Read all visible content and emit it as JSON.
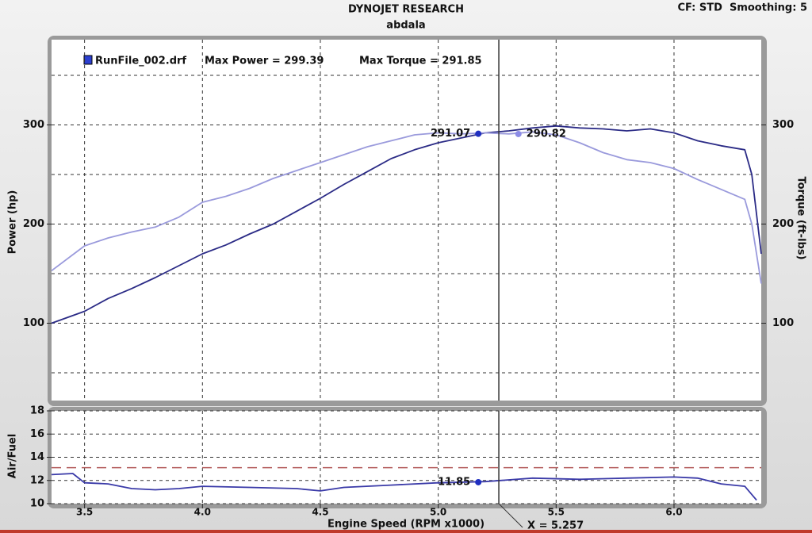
{
  "chart_data": [
    {
      "type": "line",
      "title": "DYNOJET RESEARCH",
      "subtitle": "abdala",
      "header_right": "CF: STD  Smoothing: 5",
      "legend": {
        "file": "RunFile_002.drf",
        "max_power": "Max Power = 299.39",
        "max_torque": "Max Torque = 291.85"
      },
      "ylabel": "Power (hp)",
      "y2label": "Torque (ft-lbs)",
      "xlim": [
        3.36,
        6.37
      ],
      "x_grid": [
        3.5,
        4.0,
        4.5,
        5.0,
        5.5,
        6.0
      ],
      "ylim": [
        22,
        386
      ],
      "yticks": [
        100,
        200,
        300
      ],
      "y_minor_grid": [
        50,
        150,
        250,
        350
      ],
      "y2lim": [
        22,
        386
      ],
      "y2ticks": [
        100,
        200,
        300
      ],
      "grid": true,
      "x": [
        3.36,
        3.5,
        3.6,
        3.7,
        3.8,
        3.9,
        4.0,
        4.1,
        4.2,
        4.3,
        4.4,
        4.5,
        4.6,
        4.7,
        4.8,
        4.9,
        5.0,
        5.1,
        5.2,
        5.3,
        5.4,
        5.5,
        5.6,
        5.7,
        5.8,
        5.9,
        6.0,
        6.1,
        6.2,
        6.3,
        6.33,
        6.37
      ],
      "series": [
        {
          "name": "Power",
          "color": "#2b2b86",
          "values": [
            100,
            112,
            125,
            135,
            146,
            158,
            170,
            179,
            190,
            200,
            213,
            226,
            240,
            253,
            266,
            275,
            282,
            287,
            292,
            294,
            297,
            299,
            297,
            296,
            294,
            296,
            292,
            284,
            279,
            275,
            250,
            170
          ]
        },
        {
          "name": "Torque",
          "color": "#9a9adc",
          "axis": "y2",
          "values": [
            153,
            178,
            186,
            192,
            197,
            207,
            222,
            228,
            236,
            246,
            254,
            262,
            270,
            278,
            284,
            290,
            292,
            291,
            292,
            291,
            293,
            290,
            282,
            272,
            265,
            262,
            256,
            245,
            235,
            225,
            200,
            140
          ]
        }
      ],
      "cursor": {
        "x": 5.257,
        "label": "X = 5.257"
      },
      "readouts": [
        {
          "x": 5.17,
          "value": 291.07,
          "axis": "y"
        },
        {
          "x": 5.34,
          "value": 290.82,
          "axis": "y2"
        }
      ]
    },
    {
      "type": "line",
      "ylabel": "Air/Fuel",
      "xlabel": "Engine Speed (RPM x1000)",
      "xlim": [
        3.36,
        6.37
      ],
      "xticks": [
        3.5,
        {
          "value": 4,
          "label": "4.0"
        },
        4.5,
        {
          "value": 5,
          "label": "5.0"
        },
        5.5,
        {
          "value": 6,
          "label": "6.0"
        }
      ],
      "ylim": [
        10,
        18
      ],
      "yticks": [
        10,
        12,
        14,
        16,
        18
      ],
      "grid": true,
      "reference_line": {
        "value": 13.1,
        "color": "#b35a5a"
      },
      "x": [
        3.36,
        3.45,
        3.5,
        3.6,
        3.7,
        3.8,
        3.9,
        4.0,
        4.2,
        4.4,
        4.5,
        4.6,
        4.8,
        5.0,
        5.2,
        5.4,
        5.6,
        5.8,
        6.0,
        6.1,
        6.2,
        6.3,
        6.35
      ],
      "series": [
        {
          "name": "Air/Fuel",
          "color": "#3a3aa8",
          "values": [
            12.5,
            12.6,
            11.8,
            11.7,
            11.3,
            11.2,
            11.3,
            11.5,
            11.4,
            11.3,
            11.1,
            11.4,
            11.6,
            11.8,
            11.9,
            12.2,
            12.1,
            12.2,
            12.3,
            12.2,
            11.7,
            11.5,
            10.3
          ]
        }
      ],
      "readouts": [
        {
          "x": 5.17,
          "value": 11.85,
          "axis": "y"
        }
      ]
    }
  ]
}
